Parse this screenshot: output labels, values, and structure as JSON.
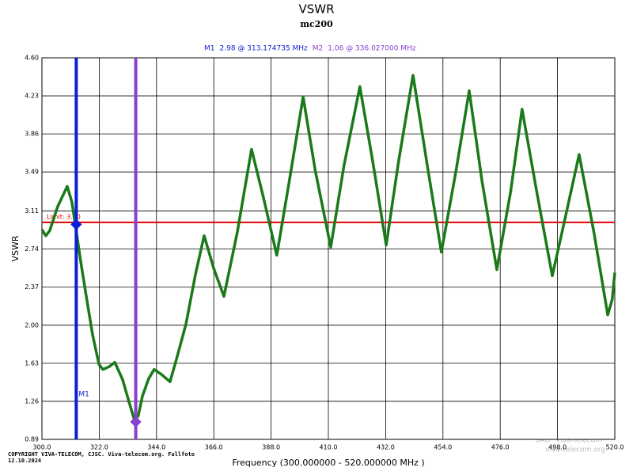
{
  "chart_data": {
    "type": "line",
    "title": "VSWR",
    "subtitle": "mc200",
    "xlabel": "Frequency (300.000000 - 520.000000 MHz )",
    "ylabel": "VSWR",
    "xlim": [
      300,
      520
    ],
    "ylim": [
      0.89,
      4.6
    ],
    "xticks": [
      {
        "value": 300,
        "label": "300.0"
      },
      {
        "value": 322,
        "label": "322.0"
      },
      {
        "value": 344,
        "label": "344.0"
      },
      {
        "value": 366,
        "label": "366.0"
      },
      {
        "value": 388,
        "label": "388.0"
      },
      {
        "value": 410,
        "label": "410.0"
      },
      {
        "value": 432,
        "label": "432.0"
      },
      {
        "value": 454,
        "label": "454.0"
      },
      {
        "value": 476,
        "label": "476.0"
      },
      {
        "value": 498,
        "label": "498.0"
      },
      {
        "value": 520,
        "label": "520.0"
      }
    ],
    "yticks": [
      0.89,
      1.26,
      1.63,
      {
        "value": 2,
        "label": "2.00"
      },
      2.37,
      2.74,
      3.11,
      3.49,
      3.86,
      4.23,
      {
        "value": 4.6,
        "label": "4.60"
      }
    ],
    "grid": true,
    "series": [
      {
        "color": "#1a7a1a",
        "x": [
          300,
          301.5,
          303,
          306,
          309.7,
          311.5,
          312.8,
          315,
          317.3,
          319.5,
          321.9,
          323.4,
          326,
          328,
          331,
          333.5,
          335.6,
          337,
          338.6,
          341,
          343.1,
          346,
          349.2,
          352,
          355.3,
          359,
          362.3,
          366,
          369.9,
          375,
          380.5,
          385,
          390.2,
          395,
          400.3,
          405,
          410.9,
          416,
          422.1,
          427,
          432.2,
          437,
          442.5,
          448,
          453.4,
          459,
          464.1,
          469,
          474.7,
          480,
          484.4,
          490,
          496,
          501,
          506.3,
          512,
          517.3,
          519,
          520
        ],
        "values": [
          2.93,
          2.87,
          2.92,
          3.15,
          3.35,
          3.2,
          2.98,
          2.6,
          2.24,
          1.9,
          1.62,
          1.57,
          1.6,
          1.64,
          1.47,
          1.25,
          1.07,
          1.12,
          1.31,
          1.48,
          1.57,
          1.52,
          1.45,
          1.7,
          2.01,
          2.5,
          2.87,
          2.55,
          2.28,
          2.9,
          3.71,
          3.25,
          2.68,
          3.4,
          4.22,
          3.5,
          2.76,
          3.55,
          4.32,
          3.6,
          2.78,
          3.6,
          4.43,
          3.55,
          2.71,
          3.5,
          4.28,
          3.4,
          2.54,
          3.3,
          4.1,
          3.3,
          2.48,
          3.05,
          3.66,
          2.9,
          2.1,
          2.25,
          2.51
        ]
      }
    ],
    "limit": {
      "label": "Limit: 3.00",
      "value": 3.0,
      "color": "#e00000"
    },
    "markers": [
      {
        "name": "M1",
        "frequency": 313.174735,
        "value": 2.98,
        "readout": "2.98 @ 313.174735 MHz",
        "color": "#0a1fd6"
      },
      {
        "name": "M2",
        "frequency": 336.027,
        "value": 1.06,
        "readout": "1.06 @ 336.027000 MHz",
        "color": "#8a3fd0"
      }
    ],
    "copyright": "COPYRIGHT VIVA-TELECOM, CJSC. Viva-telecom.org. Fullfoto",
    "date": "12.10.2024",
    "watermark": [
      "SAO \"Viva-Telecom\"",
      "viva-telecom.org"
    ]
  }
}
